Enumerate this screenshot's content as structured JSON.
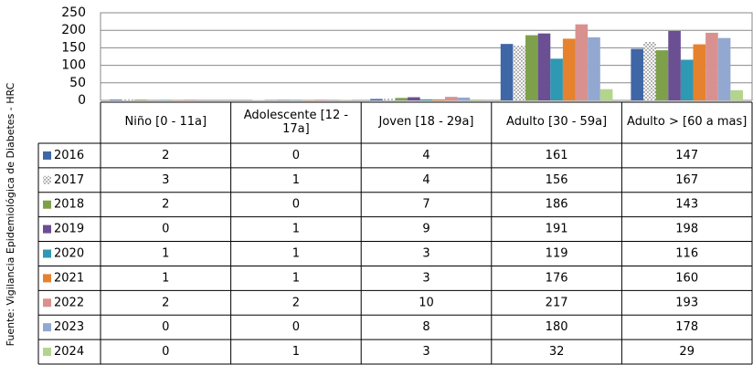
{
  "chart_data": {
    "type": "bar",
    "source": "Fuente: Vigilancia Epidemiológica de Diabetes - HRC",
    "categories": [
      "Niño [0 - 11a]",
      "Adolescente [12 - 17a]",
      "Joven [18 - 29a]",
      "Adulto [30 - 59a]",
      "Adulto > [60 a mas]"
    ],
    "series": [
      {
        "name": "2016",
        "color": "#3f67a6",
        "values": [
          2,
          0,
          4,
          161,
          147
        ]
      },
      {
        "name": "2017",
        "color": "#404040",
        "pattern": "dots",
        "values": [
          3,
          1,
          4,
          156,
          167
        ]
      },
      {
        "name": "2018",
        "color": "#7fa04a",
        "values": [
          2,
          0,
          7,
          186,
          143
        ]
      },
      {
        "name": "2019",
        "color": "#6a4f93",
        "values": [
          0,
          1,
          9,
          191,
          198
        ]
      },
      {
        "name": "2020",
        "color": "#2f98b3",
        "values": [
          1,
          1,
          3,
          119,
          116
        ]
      },
      {
        "name": "2021",
        "color": "#e6822e",
        "values": [
          1,
          1,
          3,
          176,
          160
        ]
      },
      {
        "name": "2022",
        "color": "#d9918f",
        "values": [
          2,
          2,
          10,
          217,
          193
        ]
      },
      {
        "name": "2023",
        "color": "#92a8d1",
        "values": [
          0,
          0,
          8,
          180,
          178
        ]
      },
      {
        "name": "2024",
        "color": "#b5d48b",
        "values": [
          0,
          1,
          3,
          32,
          29
        ]
      }
    ],
    "ylim": [
      0,
      250
    ],
    "yticks": [
      0,
      50,
      100,
      150,
      200,
      250
    ],
    "grid": true
  }
}
